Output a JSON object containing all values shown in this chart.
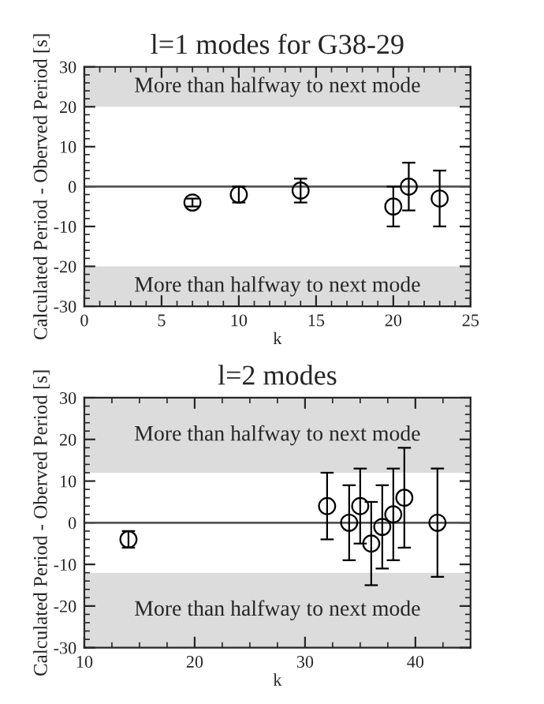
{
  "chart_data": [
    {
      "type": "scatter",
      "title": "l=1 modes for G38-29",
      "xlabel": "k",
      "ylabel": "Calculated Period - Oberved Period [s]",
      "x": [
        7,
        10,
        14,
        20,
        21,
        23
      ],
      "series": [
        {
          "color": "#000000",
          "values": [
            -4,
            -2,
            -1,
            -5,
            0,
            -3
          ],
          "errors": [
            1,
            2,
            3,
            5,
            6,
            7
          ]
        }
      ],
      "marker": "circle",
      "xlim": [
        0,
        25
      ],
      "xticks": [
        0,
        5,
        10,
        15,
        20,
        25
      ],
      "ylim": [
        -30,
        30
      ],
      "yticks": [
        -30,
        -20,
        -10,
        0,
        10,
        20,
        30
      ],
      "ref_lines": [
        {
          "axis": "y",
          "value": 0,
          "color": "#555555"
        }
      ],
      "bands": [
        {
          "axis": "y",
          "from": 20,
          "to": 30,
          "label": "More than halfway to next mode",
          "color": "#dcdcdc"
        },
        {
          "axis": "y",
          "from": -30,
          "to": -20,
          "label": "More than halfway to next mode",
          "color": "#dcdcdc"
        }
      ],
      "grid": false,
      "legend": false
    },
    {
      "type": "scatter",
      "title": "l=2 modes",
      "xlabel": "k",
      "ylabel": "Calculated Period - Oberved Period [s]",
      "x": [
        14,
        32,
        34,
        35,
        36,
        37,
        38,
        39,
        42
      ],
      "series": [
        {
          "color": "#000000",
          "values": [
            -4,
            4,
            0,
            4,
            -5,
            -1,
            2,
            6,
            0
          ],
          "errors": [
            2,
            8,
            9,
            9,
            10,
            10,
            11,
            12,
            13
          ]
        }
      ],
      "marker": "circle",
      "xlim": [
        10,
        45
      ],
      "xticks": [
        10,
        20,
        30,
        40
      ],
      "ylim": [
        -30,
        30
      ],
      "yticks": [
        -30,
        -20,
        -10,
        0,
        10,
        20,
        30
      ],
      "ref_lines": [
        {
          "axis": "y",
          "value": 0,
          "color": "#555555"
        }
      ],
      "bands": [
        {
          "axis": "y",
          "from": 12,
          "to": 30,
          "label": "More than halfway to next mode",
          "color": "#dcdcdc"
        },
        {
          "axis": "y",
          "from": -30,
          "to": -12,
          "label": "More than halfway to next mode",
          "color": "#dcdcdc"
        }
      ],
      "grid": false,
      "legend": false
    }
  ]
}
